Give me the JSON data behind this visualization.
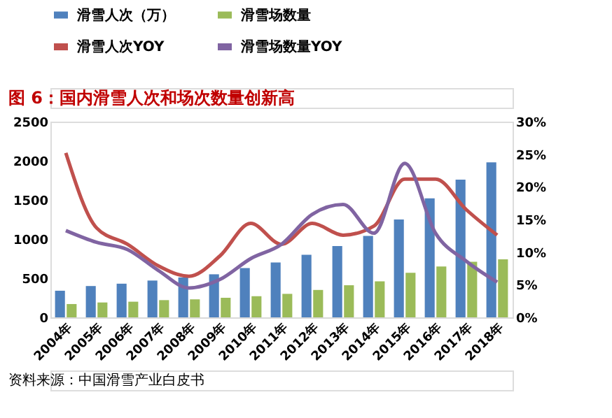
{
  "chart_data": {
    "type": "bar",
    "title": "图 6：国内滑雪人次和场次数量创新高",
    "categories": [
      "2004年",
      "2005年",
      "2006年",
      "2007年",
      "2008年",
      "2009年",
      "2010年",
      "2011年",
      "2012年",
      "2013年",
      "2014年",
      "2015年",
      "2016年",
      "2017年",
      "2018年"
    ],
    "series": [
      {
        "name": "滑雪人次（万）",
        "color": "#4f81bd",
        "values": [
          340,
          400,
          430,
          470,
          510,
          550,
          630,
          700,
          800,
          910,
          1040,
          1250,
          1520,
          1760,
          1980
        ]
      },
      {
        "name": "滑雪场数量",
        "color": "#9bbb59",
        "values": [
          170,
          190,
          200,
          220,
          230,
          250,
          270,
          300,
          350,
          410,
          460,
          570,
          650,
          710,
          740
        ]
      },
      {
        "name": "滑雪人次YOY",
        "type": "line",
        "axis": "y2",
        "color": "#c0504d",
        "values": [
          25.2,
          13.7,
          11.2,
          7.9,
          6.3,
          9.4,
          14.4,
          11.2,
          14.4,
          12.6,
          14.0,
          21.2,
          21.2,
          16.5,
          12.6
        ]
      },
      {
        "name": "滑雪场数量YOY",
        "type": "line",
        "axis": "y2",
        "color": "#8064a2",
        "values": [
          13.3,
          11.5,
          10.4,
          7.2,
          4.5,
          5.8,
          9.0,
          11.2,
          15.8,
          17.3,
          12.9,
          23.6,
          12.9,
          8.6,
          5.4
        ]
      }
    ],
    "ylim": [
      0,
      2500
    ],
    "yticks": [
      0,
      500,
      1000,
      1500,
      2000,
      2500
    ],
    "y2lim": [
      0,
      30
    ],
    "y2ticks": [
      {
        "value": 0,
        "label": "0%"
      },
      {
        "value": 5,
        "label": "5%"
      },
      {
        "value": 10,
        "label": "10%"
      },
      {
        "value": 15,
        "label": "15%"
      },
      {
        "value": 20,
        "label": "20%"
      },
      {
        "value": 25,
        "label": "25%"
      },
      {
        "value": 30,
        "label": "30%"
      }
    ],
    "legend": "top",
    "grid": false,
    "annotations": [
      "资料来源：中国滑雪产业白皮书"
    ]
  }
}
